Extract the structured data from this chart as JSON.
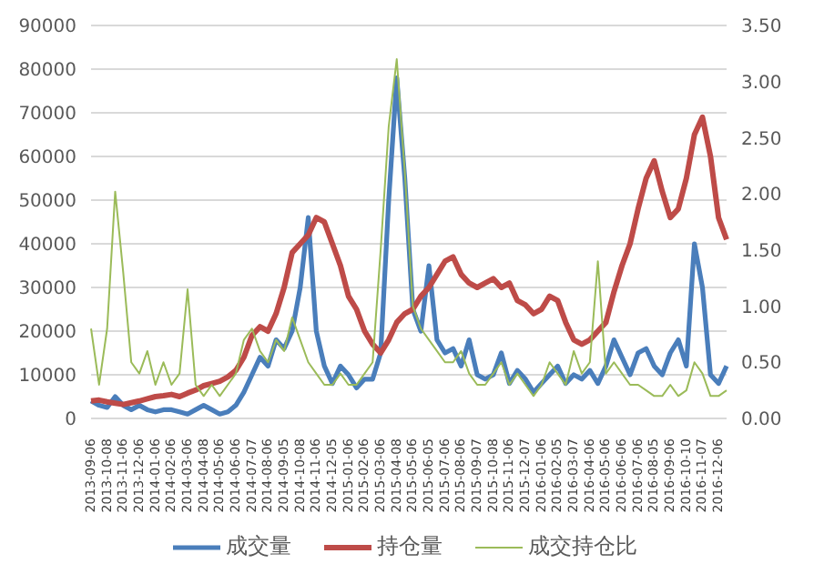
{
  "chart_data": {
    "type": "line",
    "categories": [
      "2013-09-06",
      null,
      "2013-10-08",
      null,
      "2013-11-06",
      null,
      "2013-12-06",
      null,
      "2014-01-06",
      null,
      "2014-02-06",
      null,
      "2014-03-06",
      null,
      "2014-04-08",
      null,
      "2014-05-06",
      null,
      "2014-06-06",
      null,
      "2014-07-07",
      null,
      "2014-08-06",
      null,
      "2014-09-05",
      null,
      "2014-10-08",
      null,
      "2014-11-06",
      null,
      "2014-12-05",
      null,
      "2015-01-06",
      null,
      "2015-02-06",
      null,
      "2015-03-06",
      null,
      "2015-04-08",
      null,
      "2015-05-06",
      null,
      "2015-06-05",
      null,
      "2015-07-06",
      null,
      "2015-08-06",
      null,
      "2015-09-07",
      null,
      "2015-10-08",
      null,
      "2015-11-06",
      null,
      "2015-12-07",
      null,
      "2016-01-06",
      null,
      "2016-02-05",
      null,
      "2016-03-07",
      null,
      "2016-04-06",
      null,
      "2016-05-06",
      null,
      "2016-06-06",
      null,
      "2016-07-06",
      null,
      "2016-08-05",
      null,
      "2016-09-06",
      null,
      "2016-10-10",
      null,
      "2016-11-07",
      null,
      "2016-12-06",
      null
    ],
    "series": [
      {
        "name": "成交量",
        "color": "#4a7ebb",
        "values": [
          4000,
          3000,
          2500,
          5000,
          3000,
          2000,
          3000,
          2000,
          1500,
          2000,
          2000,
          1500,
          1000,
          2000,
          3000,
          2000,
          1000,
          1500,
          3000,
          6000,
          10000,
          14000,
          12000,
          18000,
          16000,
          20000,
          30000,
          46000,
          20000,
          12000,
          8000,
          12000,
          10000,
          7000,
          9000,
          9000,
          15000,
          50000,
          78000,
          55000,
          25000,
          20000,
          35000,
          18000,
          15000,
          16000,
          12000,
          18000,
          10000,
          9000,
          10000,
          15000,
          8000,
          11000,
          9000,
          6000,
          8000,
          10000,
          12000,
          8000,
          10000,
          9000,
          11000,
          8000,
          12000,
          18000,
          14000,
          10000,
          15000,
          16000,
          12000,
          10000,
          15000,
          18000,
          12000,
          40000,
          30000,
          10000,
          8000,
          12000
        ]
      },
      {
        "name": "持仓量",
        "color": "#be4b48",
        "values": [
          4000,
          4200,
          3800,
          3500,
          3200,
          3600,
          4000,
          4500,
          5000,
          5200,
          5500,
          5000,
          5800,
          6500,
          7500,
          8000,
          8500,
          9500,
          11000,
          14000,
          19000,
          21000,
          20000,
          24000,
          30000,
          38000,
          40000,
          42000,
          46000,
          45000,
          40000,
          35000,
          28000,
          25000,
          20000,
          17000,
          15000,
          18000,
          22000,
          24000,
          25000,
          28000,
          30000,
          33000,
          36000,
          37000,
          33000,
          31000,
          30000,
          31000,
          32000,
          30000,
          31000,
          27000,
          26000,
          24000,
          25000,
          28000,
          27000,
          22000,
          18000,
          17000,
          18000,
          20000,
          22000,
          29000,
          35000,
          40000,
          48000,
          55000,
          59000,
          52000,
          46000,
          48000,
          55000,
          65000,
          69000,
          60000,
          46000,
          41000
        ]
      },
      {
        "name": "成交持仓比",
        "color": "#9bbb59",
        "axis": "y2",
        "values": [
          0.8,
          0.3,
          0.8,
          2.02,
          1.3,
          0.5,
          0.4,
          0.6,
          0.3,
          0.5,
          0.3,
          0.4,
          1.15,
          0.3,
          0.2,
          0.3,
          0.2,
          0.3,
          0.4,
          0.7,
          0.8,
          0.6,
          0.5,
          0.7,
          0.6,
          0.9,
          0.7,
          0.5,
          0.4,
          0.3,
          0.3,
          0.4,
          0.3,
          0.3,
          0.4,
          0.5,
          1.5,
          2.6,
          3.2,
          2.2,
          1.0,
          0.8,
          0.7,
          0.6,
          0.5,
          0.5,
          0.6,
          0.4,
          0.3,
          0.3,
          0.4,
          0.5,
          0.3,
          0.4,
          0.3,
          0.2,
          0.3,
          0.5,
          0.4,
          0.3,
          0.6,
          0.4,
          0.5,
          1.4,
          0.4,
          0.5,
          0.4,
          0.3,
          0.3,
          0.25,
          0.2,
          0.2,
          0.3,
          0.2,
          0.25,
          0.5,
          0.4,
          0.2,
          0.2,
          0.25
        ]
      }
    ],
    "ylim": [
      0,
      90000
    ],
    "yticks": [
      0,
      10000,
      20000,
      30000,
      40000,
      50000,
      60000,
      70000,
      80000,
      90000
    ],
    "y2lim": [
      0,
      3.5
    ],
    "y2ticks": [
      {
        "value": 0,
        "label": "0.00"
      },
      {
        "value": 0.5,
        "label": "0.50"
      },
      {
        "value": 1,
        "label": "1.00"
      },
      {
        "value": 1.5,
        "label": "1.50"
      },
      {
        "value": 2,
        "label": "2.00"
      },
      {
        "value": 2.5,
        "label": "2.50"
      },
      {
        "value": 3,
        "label": "3.00"
      },
      {
        "value": 3.5,
        "label": "3.50"
      }
    ],
    "grid": "y",
    "legend": "bottom",
    "marker": "none",
    "line_style": "solid"
  }
}
